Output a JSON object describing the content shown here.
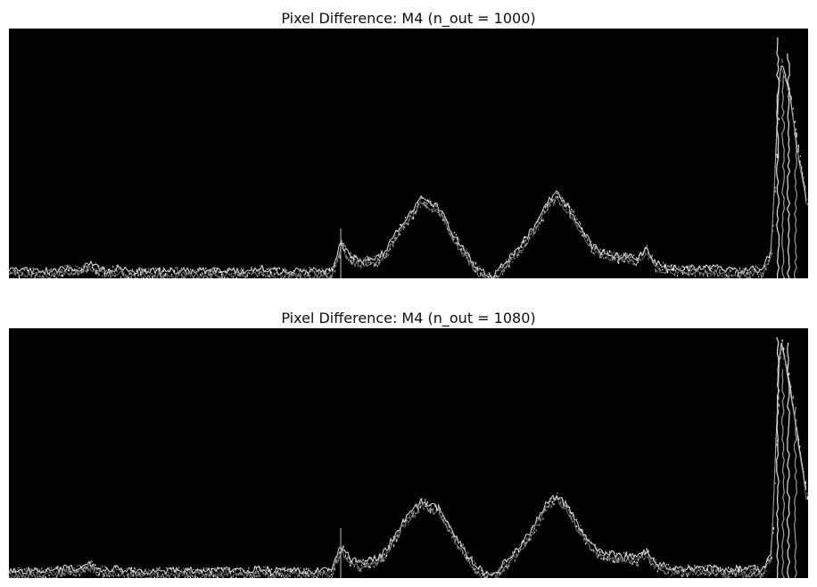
{
  "figure": {
    "background": "#ffffff"
  },
  "chart_data": [
    {
      "type": "image",
      "title": "Pixel Difference: M4 (n_out = 1000)",
      "colormap": "gray",
      "axes": "off",
      "profile_relative_intensity": [
        0.03,
        0.03,
        0.03,
        0.03,
        0.03,
        0.03,
        0.04,
        0.04,
        0.04,
        0.06,
        0.04,
        0.03,
        0.04,
        0.03,
        0.03,
        0.03,
        0.03,
        0.03,
        0.03,
        0.03,
        0.03,
        0.03,
        0.03,
        0.03,
        0.03,
        0.03,
        0.03,
        0.03,
        0.04,
        0.03,
        0.03,
        0.03,
        0.03,
        0.03,
        0.03,
        0.03,
        0.03,
        0.14,
        0.09,
        0.07,
        0.08,
        0.08,
        0.11,
        0.17,
        0.23,
        0.27,
        0.32,
        0.3,
        0.28,
        0.21,
        0.15,
        0.1,
        0.05,
        0.02,
        0.01,
        0.05,
        0.09,
        0.13,
        0.18,
        0.23,
        0.3,
        0.34,
        0.3,
        0.25,
        0.19,
        0.13,
        0.11,
        0.1,
        0.09,
        0.09,
        0.08,
        0.12,
        0.06,
        0.05,
        0.04,
        0.04,
        0.04,
        0.04,
        0.04,
        0.04,
        0.03,
        0.04,
        0.03,
        0.04,
        0.03,
        0.12,
        0.88,
        0.75,
        0.5,
        0.3
      ],
      "spikes_relative_intensity": [
        0.97,
        0.82,
        0.92,
        0.6
      ]
    },
    {
      "type": "image",
      "title": "Pixel Difference: M4 (n_out = 1080)",
      "colormap": "gray",
      "axes": "off",
      "profile_relative_intensity": [
        0.03,
        0.03,
        0.03,
        0.03,
        0.03,
        0.03,
        0.04,
        0.04,
        0.04,
        0.06,
        0.04,
        0.03,
        0.04,
        0.03,
        0.03,
        0.03,
        0.03,
        0.03,
        0.03,
        0.03,
        0.03,
        0.03,
        0.03,
        0.03,
        0.03,
        0.03,
        0.03,
        0.03,
        0.04,
        0.03,
        0.03,
        0.03,
        0.03,
        0.03,
        0.03,
        0.03,
        0.03,
        0.13,
        0.08,
        0.06,
        0.07,
        0.08,
        0.11,
        0.17,
        0.23,
        0.27,
        0.31,
        0.29,
        0.28,
        0.21,
        0.15,
        0.1,
        0.05,
        0.02,
        0.01,
        0.05,
        0.09,
        0.13,
        0.18,
        0.24,
        0.3,
        0.33,
        0.3,
        0.24,
        0.18,
        0.13,
        0.1,
        0.1,
        0.09,
        0.09,
        0.08,
        0.11,
        0.06,
        0.05,
        0.04,
        0.04,
        0.04,
        0.04,
        0.04,
        0.04,
        0.03,
        0.04,
        0.03,
        0.04,
        0.03,
        0.1,
        0.96,
        0.8,
        0.55,
        0.32
      ],
      "spikes_relative_intensity": [
        0.98,
        0.85,
        0.95,
        0.7
      ]
    }
  ]
}
